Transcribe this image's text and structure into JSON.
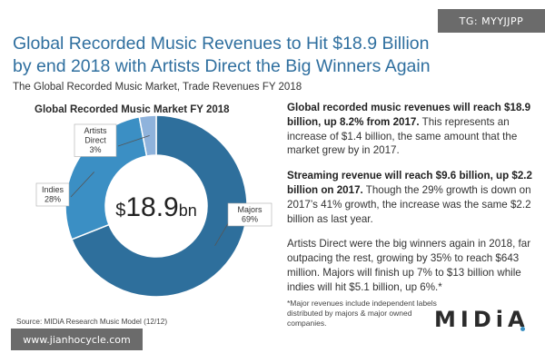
{
  "watermark_top": "TG: MYYJJPP",
  "watermark_bottom": "www.jianhocycle.com",
  "title": "Global Recorded Music Revenues to Hit $18.9 Billion by end 2018 with Artists Direct the Big Winners Again",
  "subtitle": "The Global Recorded Music Market, Trade Revenues FY 2018",
  "chart_data": {
    "type": "pie",
    "title": "Global Recorded Music Market FY 2018",
    "center_label": {
      "prefix": "$",
      "value": "18.9",
      "suffix": "bn"
    },
    "slices": [
      {
        "name": "Majors",
        "value": 69,
        "label": "Majors",
        "pct_label": "69%",
        "color": "#2e6f9c"
      },
      {
        "name": "Indies",
        "value": 28,
        "label": "Indies",
        "pct_label": "28%",
        "color": "#3b8fc4"
      },
      {
        "name": "Artists Direct",
        "value": 3,
        "label": "Artists Direct",
        "pct_label": "3%",
        "color": "#8fb3dc"
      }
    ]
  },
  "paragraphs": [
    {
      "bold": "Global recorded music revenues will reach $18.9 billion, up 8.2% from 2017.",
      "text": " This represents an increase of $1.4 billion, the same amount that the market grew by in 2017."
    },
    {
      "bold": "Streaming revenue will reach $9.6 billion, up $2.2 billion on 2017.",
      "text": " Though the 29% growth is down on 2017’s 41% growth, the increase was the same $2.2 billion as last year."
    },
    {
      "bold": "",
      "text": "Artists Direct were the big winners again in 2018, far outpacing the rest, growing by 35% to reach $643 million. Majors will finish up 7% to $13 billion while indies will hit $5.1 billion, up 6%.*"
    }
  ],
  "footnote": "*Major revenues include independent labels distributed by majors & major owned companies.",
  "source": "Source: MIDiA Research Music Model (12/12)",
  "logo": "MIDiA"
}
